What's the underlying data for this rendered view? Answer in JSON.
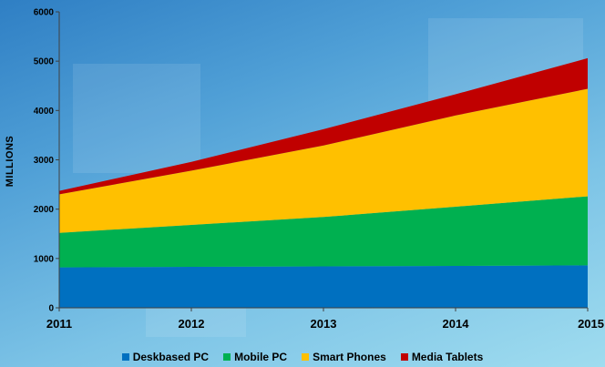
{
  "chart_data": {
    "type": "area",
    "stacked": true,
    "title": "",
    "xlabel": "",
    "ylabel": "MILLIONS",
    "ylim": [
      0,
      6000
    ],
    "yticks": [
      0,
      1000,
      2000,
      3000,
      4000,
      5000,
      6000
    ],
    "x": [
      "2011",
      "2012",
      "2013",
      "2014",
      "2015"
    ],
    "grid": false,
    "legend_position": "bottom",
    "series": [
      {
        "name": "Deskbased PC",
        "color": "#0070c0",
        "values": [
          820,
          830,
          840,
          850,
          860
        ]
      },
      {
        "name": "Mobile PC",
        "color": "#00b050",
        "values": [
          700,
          850,
          1000,
          1200,
          1400
        ]
      },
      {
        "name": "Smart Phones",
        "color": "#ffc000",
        "values": [
          780,
          1100,
          1450,
          1850,
          2180
        ]
      },
      {
        "name": "Media Tablets",
        "color": "#c00000",
        "values": [
          70,
          180,
          330,
          430,
          620
        ]
      }
    ]
  }
}
